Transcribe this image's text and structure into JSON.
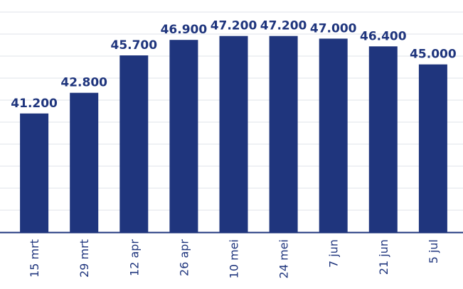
{
  "chart_data": {
    "type": "bar",
    "categories": [
      "15 mrt",
      "29 mrt",
      "12 apr",
      "26 apr",
      "10 mei",
      "24 mei",
      "7 jun",
      "21 jun",
      "5 jul"
    ],
    "values": [
      41200,
      42800,
      45700,
      46900,
      47200,
      47200,
      47000,
      46400,
      45000
    ],
    "value_labels": [
      "41.200",
      "42.800",
      "45.700",
      "46.900",
      "47.200",
      "47.200",
      "47.000",
      "46.400",
      "45.000"
    ],
    "ylim": [
      32000,
      49000
    ],
    "grid": true,
    "colors": {
      "bar": "#1f357d",
      "label": "#1f357d",
      "axis": "#1f357d",
      "grid": "#dfe3ea"
    }
  }
}
